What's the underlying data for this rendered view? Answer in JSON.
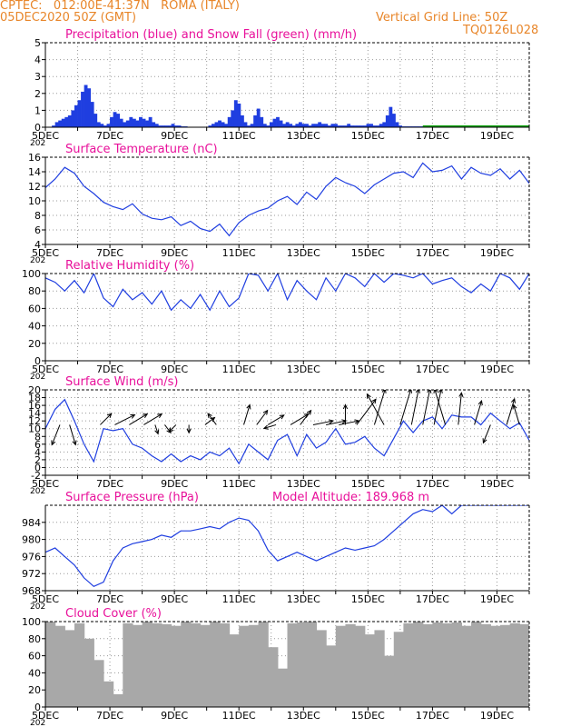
{
  "header": {
    "line1": "CPTEC:   012:00E-41:37N   ROMA (ITALY)",
    "line2": "05DEC2020 50Z (GMT)",
    "grid_note": "Vertical Grid Line: 50Z",
    "code": "TQ0126L028"
  },
  "colors": {
    "header": "#e8862a",
    "title": "#e8109a",
    "series": "#1f3ee0",
    "snow": "#00a000",
    "cloud": "#a8a8a8",
    "wind_arrow": "#000000"
  },
  "x_ticks": [
    "5DEC",
    "7DEC",
    "9DEC",
    "11DEC",
    "13DEC",
    "15DEC",
    "17DEC",
    "19DEC"
  ],
  "year_fragment": "202",
  "chart_data": [
    {
      "type": "bar",
      "name": "precip",
      "title": "Precipitation (blue) and Snow Fall (green) (mm/h)",
      "ylim": [
        0,
        5
      ],
      "yticks": [
        "0",
        "1",
        "2",
        "3",
        "4",
        "5"
      ],
      "grid": true,
      "x_days": [
        0,
        15
      ],
      "x": [
        0.25,
        0.35,
        0.45,
        0.55,
        0.65,
        0.75,
        0.85,
        0.95,
        1.05,
        1.15,
        1.25,
        1.35,
        1.45,
        1.55,
        1.65,
        1.75,
        1.85,
        1.95,
        2.05,
        2.15,
        2.25,
        2.35,
        2.45,
        2.55,
        2.65,
        2.75,
        2.85,
        2.95,
        3.05,
        3.15,
        3.25,
        3.35,
        3.45,
        3.55,
        3.65,
        3.75,
        3.85,
        3.95,
        4.05,
        4.15,
        4.25,
        4.35,
        5.1,
        5.2,
        5.3,
        5.4,
        5.5,
        5.6,
        5.7,
        5.8,
        5.9,
        6.0,
        6.1,
        6.2,
        6.3,
        6.4,
        6.5,
        6.6,
        6.7,
        6.8,
        6.9,
        7.0,
        7.1,
        7.2,
        7.3,
        7.4,
        7.5,
        7.6,
        7.7,
        7.8,
        7.9,
        8.0,
        8.1,
        8.2,
        8.3,
        8.4,
        8.5,
        8.6,
        8.7,
        8.8,
        8.9,
        9.0,
        9.1,
        9.2,
        9.3,
        9.4,
        9.5,
        9.6,
        9.7,
        9.8,
        9.9,
        10.0,
        10.1,
        10.2,
        10.3,
        10.4,
        10.5,
        10.6,
        10.7,
        10.8,
        10.9,
        11.0,
        11.1,
        11.2,
        11.3,
        11.4,
        11.5,
        11.6,
        11.7
      ],
      "values": [
        0.1,
        0.3,
        0.4,
        0.5,
        0.6,
        0.7,
        1.0,
        1.3,
        1.6,
        2.1,
        2.5,
        2.3,
        1.5,
        0.8,
        0.3,
        0.2,
        0.1,
        0.2,
        0.6,
        0.9,
        0.8,
        0.5,
        0.3,
        0.4,
        0.6,
        0.5,
        0.4,
        0.6,
        0.5,
        0.4,
        0.6,
        0.3,
        0.2,
        0.1,
        0.1,
        0.1,
        0.1,
        0.2,
        0.1,
        0.1,
        0.05,
        0.05,
        0.1,
        0.2,
        0.3,
        0.4,
        0.3,
        0.2,
        0.6,
        1.0,
        1.6,
        1.4,
        0.7,
        0.3,
        0.1,
        0.2,
        0.7,
        1.1,
        0.6,
        0.2,
        0.1,
        0.3,
        0.5,
        0.6,
        0.4,
        0.2,
        0.3,
        0.2,
        0.1,
        0.2,
        0.3,
        0.2,
        0.2,
        0.1,
        0.2,
        0.2,
        0.3,
        0.2,
        0.2,
        0.1,
        0.2,
        0.2,
        0.1,
        0.1,
        0.1,
        0.2,
        0.1,
        0.1,
        0.1,
        0.1,
        0.1,
        0.2,
        0.2,
        0.1,
        0.1,
        0.2,
        0.3,
        0.7,
        1.2,
        0.8,
        0.3,
        0.1,
        0.05,
        0.05,
        0.05,
        0.05,
        0.05,
        0.05,
        0.05
      ],
      "snow_line": [
        11.7,
        15.0
      ]
    },
    {
      "type": "line",
      "name": "temperature",
      "title": "Surface Temperature (nC)",
      "ylim": [
        4,
        16
      ],
      "yticks": [
        "4",
        "6",
        "8",
        "10",
        "12",
        "14",
        "16"
      ],
      "grid": true,
      "x_days": [
        0,
        15
      ],
      "x": [
        0,
        0.3,
        0.6,
        0.9,
        1.2,
        1.5,
        1.8,
        2.1,
        2.4,
        2.7,
        3.0,
        3.3,
        3.6,
        3.9,
        4.2,
        4.5,
        4.8,
        5.1,
        5.4,
        5.7,
        6.0,
        6.3,
        6.6,
        6.9,
        7.2,
        7.5,
        7.8,
        8.1,
        8.4,
        8.7,
        9.0,
        9.3,
        9.6,
        9.9,
        10.2,
        10.5,
        10.8,
        11.1,
        11.4,
        11.7,
        12.0,
        12.3,
        12.6,
        12.9,
        13.2,
        13.5,
        13.8,
        14.1,
        14.4,
        14.7,
        15.0
      ],
      "values": [
        11.8,
        13.0,
        14.6,
        13.8,
        12.0,
        11.0,
        9.8,
        9.2,
        8.8,
        9.6,
        8.2,
        7.6,
        7.4,
        7.8,
        6.6,
        7.2,
        6.2,
        5.8,
        6.8,
        5.2,
        7.0,
        8.0,
        8.6,
        9.0,
        10.0,
        10.6,
        9.5,
        11.2,
        10.2,
        12.0,
        13.2,
        12.5,
        12.0,
        11.0,
        12.2,
        13.0,
        13.8,
        14.0,
        13.2,
        15.2,
        14.0,
        14.2,
        14.8,
        13.0,
        14.6,
        13.8,
        13.5,
        14.4,
        13.0,
        14.2,
        12.4
      ]
    },
    {
      "type": "line",
      "name": "humidity",
      "title": "Relative Humidity (%)",
      "ylim": [
        0,
        100
      ],
      "yticks": [
        "0",
        "20",
        "40",
        "60",
        "80",
        "100"
      ],
      "grid": true,
      "x_days": [
        0,
        15
      ],
      "x": [
        0,
        0.3,
        0.6,
        0.9,
        1.2,
        1.5,
        1.8,
        2.1,
        2.4,
        2.7,
        3.0,
        3.3,
        3.6,
        3.9,
        4.2,
        4.5,
        4.8,
        5.1,
        5.4,
        5.7,
        6.0,
        6.3,
        6.6,
        6.9,
        7.2,
        7.5,
        7.8,
        8.1,
        8.4,
        8.7,
        9.0,
        9.3,
        9.6,
        9.9,
        10.2,
        10.5,
        10.8,
        11.1,
        11.4,
        11.7,
        12.0,
        12.3,
        12.6,
        12.9,
        13.2,
        13.5,
        13.8,
        14.1,
        14.4,
        14.7,
        15.0
      ],
      "values": [
        95,
        90,
        80,
        92,
        78,
        100,
        72,
        62,
        82,
        70,
        78,
        65,
        80,
        58,
        70,
        60,
        76,
        58,
        80,
        62,
        72,
        100,
        98,
        80,
        100,
        70,
        92,
        80,
        70,
        95,
        80,
        100,
        95,
        85,
        100,
        90,
        100,
        98,
        95,
        100,
        88,
        92,
        95,
        85,
        78,
        88,
        80,
        100,
        95,
        82,
        100
      ]
    },
    {
      "type": "line",
      "name": "wind",
      "title": "Surface Wind (m/s)",
      "ylim": [
        -2,
        20
      ],
      "yticks": [
        "-2",
        "0",
        "2",
        "4",
        "6",
        "8",
        "10",
        "12",
        "14",
        "16",
        "18",
        "20"
      ],
      "grid": true,
      "x_days": [
        0,
        15
      ],
      "x": [
        0,
        0.3,
        0.6,
        0.9,
        1.2,
        1.5,
        1.8,
        2.1,
        2.4,
        2.7,
        3.0,
        3.3,
        3.6,
        3.9,
        4.2,
        4.5,
        4.8,
        5.1,
        5.4,
        5.7,
        6.0,
        6.3,
        6.6,
        6.9,
        7.2,
        7.5,
        7.8,
        8.1,
        8.4,
        8.7,
        9.0,
        9.3,
        9.6,
        9.9,
        10.2,
        10.5,
        10.8,
        11.1,
        11.4,
        11.7,
        12.0,
        12.3,
        12.6,
        12.9,
        13.2,
        13.5,
        13.8,
        14.1,
        14.4,
        14.7,
        15.0
      ],
      "values": [
        10,
        15,
        17.5,
        12,
        6,
        1.5,
        10,
        9.5,
        10,
        6,
        5,
        3,
        1.5,
        3.5,
        1.5,
        3,
        2,
        4,
        3,
        5,
        1,
        6,
        4,
        2,
        7,
        8.5,
        3,
        8.5,
        5,
        6.5,
        10,
        6,
        6.5,
        8,
        5,
        3,
        7.5,
        12,
        9,
        12,
        13,
        10,
        13.5,
        13,
        13,
        11,
        14,
        12,
        10,
        11.5,
        7
      ]
    },
    {
      "type": "line",
      "name": "pressure",
      "title": "Surface Pressure (hPa)",
      "altitude_label": "Model Altitude: 189.968 m",
      "ylim": [
        968,
        988
      ],
      "yticks": [
        "968",
        "972",
        "976",
        "980",
        "984"
      ],
      "grid": true,
      "x_days": [
        0,
        15
      ],
      "x": [
        0,
        0.3,
        0.6,
        0.9,
        1.2,
        1.5,
        1.8,
        2.1,
        2.4,
        2.7,
        3.0,
        3.3,
        3.6,
        3.9,
        4.2,
        4.5,
        4.8,
        5.1,
        5.4,
        5.7,
        6.0,
        6.3,
        6.6,
        6.9,
        7.2,
        7.5,
        7.8,
        8.1,
        8.4,
        8.7,
        9.0,
        9.3,
        9.6,
        9.9,
        10.2,
        10.5,
        10.8,
        11.1,
        11.4,
        11.7,
        12.0,
        12.3,
        12.6,
        12.9,
        13.2,
        13.5,
        13.8,
        14.1,
        14.4,
        14.7,
        15.0
      ],
      "values": [
        977,
        978,
        976,
        974,
        971,
        969,
        970,
        975,
        978,
        979,
        979.5,
        980,
        981,
        980.5,
        982,
        982,
        982.5,
        983,
        982.5,
        984,
        985,
        984.5,
        982,
        977.5,
        975,
        976,
        977,
        976,
        975,
        976,
        977,
        978,
        977.5,
        978,
        978.5,
        980,
        982,
        984,
        986,
        987,
        986.5,
        988,
        986,
        988,
        988,
        988,
        988,
        988,
        988,
        988,
        988
      ]
    },
    {
      "type": "area",
      "name": "cloud",
      "title": "Cloud Cover (%)",
      "ylim": [
        0,
        100
      ],
      "yticks": [
        "0",
        "20",
        "40",
        "60",
        "80",
        "100"
      ],
      "grid": true,
      "x_days": [
        0,
        15
      ],
      "x": [
        0,
        0.3,
        0.6,
        0.9,
        1.2,
        1.5,
        1.8,
        2.1,
        2.4,
        2.7,
        3.0,
        3.3,
        3.6,
        3.9,
        4.2,
        4.5,
        4.8,
        5.1,
        5.4,
        5.7,
        6.0,
        6.3,
        6.6,
        6.9,
        7.2,
        7.5,
        7.8,
        8.1,
        8.4,
        8.7,
        9.0,
        9.3,
        9.6,
        9.9,
        10.2,
        10.5,
        10.8,
        11.1,
        11.4,
        11.7,
        12.0,
        12.3,
        12.6,
        12.9,
        13.2,
        13.5,
        13.8,
        14.1,
        14.4,
        14.7,
        15.0
      ],
      "values": [
        100,
        95,
        90,
        98,
        80,
        55,
        30,
        15,
        98,
        96,
        100,
        98,
        97,
        95,
        100,
        98,
        96,
        100,
        98,
        85,
        95,
        96,
        100,
        70,
        45,
        98,
        99,
        100,
        90,
        72,
        95,
        97,
        95,
        85,
        90,
        60,
        88,
        98,
        100,
        97,
        99,
        98,
        99,
        95,
        100,
        97,
        95,
        96,
        98,
        97,
        60
      ]
    }
  ],
  "wind_arrows": [
    {
      "x": 0.45,
      "u": -0.4,
      "v": -1.0,
      "s": 1.0
    },
    {
      "x": 0.75,
      "u": 0.3,
      "v": -1.0,
      "s": 1.0
    },
    {
      "x": 1.7,
      "u": 0.7,
      "v": 0.7,
      "s": 0.8
    },
    {
      "x": 2.15,
      "u": 1.0,
      "v": 0.5,
      "s": 1.0
    },
    {
      "x": 2.6,
      "u": 1.0,
      "v": 0.6,
      "s": 0.9
    },
    {
      "x": 3.05,
      "u": 1.0,
      "v": 0.6,
      "s": 0.9
    },
    {
      "x": 3.4,
      "u": 0.3,
      "v": -0.9,
      "s": 0.5
    },
    {
      "x": 3.7,
      "u": 0.6,
      "v": -0.8,
      "s": 0.5
    },
    {
      "x": 4.05,
      "u": -0.7,
      "v": -0.7,
      "s": 0.5
    },
    {
      "x": 4.45,
      "u": 0.0,
      "v": -1.0,
      "s": 0.4
    },
    {
      "x": 4.95,
      "u": 0.8,
      "v": 0.6,
      "s": 0.6
    },
    {
      "x": 5.3,
      "u": -0.6,
      "v": 0.8,
      "s": 0.7
    },
    {
      "x": 6.15,
      "u": 0.3,
      "v": 1.0,
      "s": 1.0
    },
    {
      "x": 6.55,
      "u": 0.6,
      "v": 0.8,
      "s": 0.9
    },
    {
      "x": 6.9,
      "u": 1.0,
      "v": 0.6,
      "s": 0.8
    },
    {
      "x": 7.15,
      "u": -1.0,
      "v": -0.3,
      "s": 0.6
    },
    {
      "x": 7.6,
      "u": 1.0,
      "v": 0.6,
      "s": 0.9
    },
    {
      "x": 7.9,
      "u": 0.6,
      "v": 0.8,
      "s": 0.9
    },
    {
      "x": 8.3,
      "u": 1.0,
      "v": 0.2,
      "s": 1.0
    },
    {
      "x": 8.7,
      "u": 1.0,
      "v": 0.2,
      "s": 1.0
    },
    {
      "x": 9.1,
      "u": 1.0,
      "v": 0.2,
      "s": 1.0
    },
    {
      "x": 9.3,
      "u": 0.0,
      "v": 1.0,
      "s": 1.0
    },
    {
      "x": 9.65,
      "u": 0.6,
      "v": 0.8,
      "s": 1.6
    },
    {
      "x": 10.2,
      "u": 0.3,
      "v": 1.0,
      "s": 1.8
    },
    {
      "x": 10.5,
      "u": -0.5,
      "v": 0.9,
      "s": 1.7
    },
    {
      "x": 11.0,
      "u": 0.3,
      "v": 1.0,
      "s": 1.8
    },
    {
      "x": 11.35,
      "u": 0.2,
      "v": 1.0,
      "s": 1.8
    },
    {
      "x": 11.7,
      "u": 0.2,
      "v": 1.0,
      "s": 1.8
    },
    {
      "x": 12.05,
      "u": 0.2,
      "v": 1.0,
      "s": 1.8
    },
    {
      "x": 12.4,
      "u": -0.3,
      "v": 1.0,
      "s": 1.8
    },
    {
      "x": 12.8,
      "u": 0.1,
      "v": 1.0,
      "s": 1.6
    },
    {
      "x": 13.3,
      "u": 0.3,
      "v": 1.0,
      "s": 1.2
    },
    {
      "x": 13.8,
      "u": -0.4,
      "v": -1.0,
      "s": 0.9
    },
    {
      "x": 14.3,
      "u": 0.3,
      "v": 1.0,
      "s": 1.3
    },
    {
      "x": 14.7,
      "u": -0.3,
      "v": 1.0,
      "s": 1.0
    }
  ]
}
